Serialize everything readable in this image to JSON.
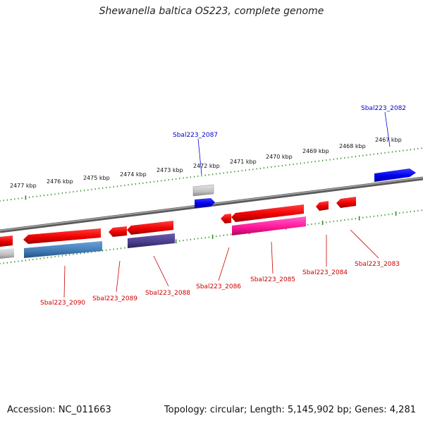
{
  "title": "Shewanella baltica OS223, complete genome",
  "footer": {
    "accession": "Accession: NC_011663",
    "summary": "Topology: circular; Length: 5,145,902 bp; Genes: 4,281"
  },
  "colors": {
    "forward_label": "#0000cc",
    "reverse_label": "#cc0000",
    "tick": "#2e8b22",
    "backbone": "#808080"
  },
  "scale_labels": [
    "2477 kbp",
    "2476 kbp",
    "2475 kbp",
    "2474 kbp",
    "2473 kbp",
    "2472 kbp",
    "2471 kbp",
    "2470 kbp",
    "2469 kbp",
    "2468 kbp",
    "2467 kbp"
  ],
  "gene_labels": {
    "forward": [
      "Sbal223_2087",
      "Sbal223_2082"
    ],
    "reverse": [
      "Sbal223_2090",
      "Sbal223_2089",
      "Sbal223_2088",
      "Sbal223_2086",
      "Sbal223_2085",
      "Sbal223_2084",
      "Sbal223_2083"
    ]
  }
}
